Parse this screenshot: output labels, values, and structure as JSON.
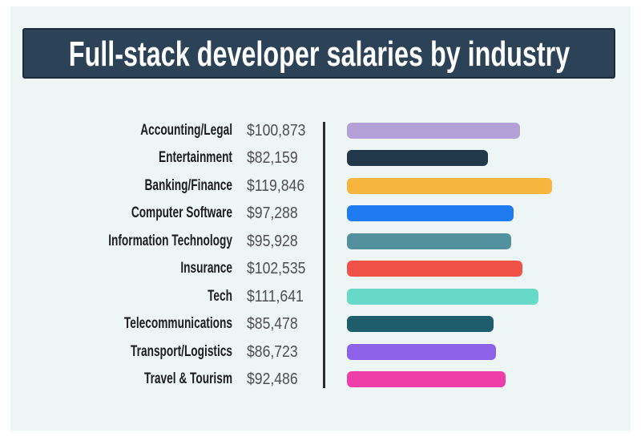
{
  "page": {
    "background": "#ffffff",
    "panel_background": "#edf5f5"
  },
  "header": {
    "title": "Full-stack developer salaries by industry",
    "background": "#2b4257",
    "border_color": "#1b2c3b",
    "text_color": "#ffffff"
  },
  "chart_data": {
    "type": "bar",
    "orientation": "horizontal",
    "title": "Full-stack developer salaries by industry",
    "xlabel": "",
    "ylabel": "",
    "legend": false,
    "grid": false,
    "categories": [
      "Accounting/Legal",
      "Entertainment",
      "Banking/Finance",
      "Computer Software",
      "Information Technology",
      "Insurance",
      "Tech",
      "Telecommunications",
      "Transport/Logistics",
      "Travel & Tourism"
    ],
    "values": [
      100873,
      82159,
      119846,
      97288,
      95928,
      102535,
      111641,
      85478,
      86723,
      92486
    ],
    "value_labels": [
      "$100,873",
      "$82,159",
      "$119,846",
      "$97,288",
      "$95,928",
      "$102,535",
      "$111,641",
      "$85,478",
      "$86,723",
      "$92,486"
    ],
    "bar_colors": [
      "#b3a1d8",
      "#21394b",
      "#f6b53e",
      "#1f7cf0",
      "#53919f",
      "#ef5347",
      "#66d9c8",
      "#1e5d6b",
      "#8e62e8",
      "#ee3fa8"
    ],
    "label_color": "#1d1d1d",
    "value_color": "#4e4e4e",
    "divider_color": "#2b2b2b"
  }
}
